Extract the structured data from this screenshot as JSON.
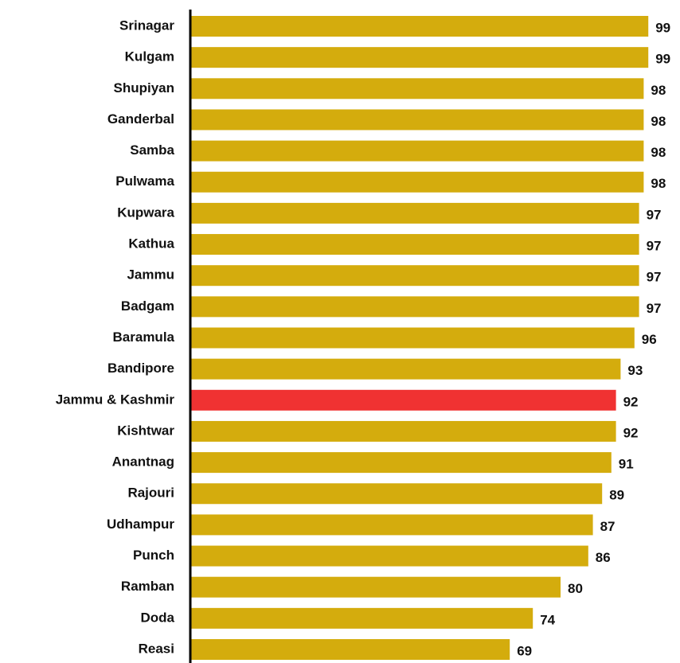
{
  "chart_data": {
    "type": "barh",
    "categories": [
      "Srinagar",
      "Kulgam",
      "Shupiyan",
      "Ganderbal",
      "Samba",
      "Pulwama",
      "Kupwara",
      "Kathua",
      "Jammu",
      "Badgam",
      "Baramula",
      "Bandipore",
      "Jammu & Kashmir",
      "Kishtwar",
      "Anantnag",
      "Rajouri",
      "Udhampur",
      "Punch",
      "Ramban",
      "Doda",
      "Reasi"
    ],
    "values": [
      99,
      99,
      98,
      98,
      98,
      98,
      97,
      97,
      97,
      97,
      96,
      93,
      92,
      92,
      91,
      89,
      87,
      86,
      80,
      74,
      69
    ],
    "colors": [
      "#d4ac0d",
      "#d4ac0d",
      "#d4ac0d",
      "#d4ac0d",
      "#d4ac0d",
      "#d4ac0d",
      "#d4ac0d",
      "#d4ac0d",
      "#d4ac0d",
      "#d4ac0d",
      "#d4ac0d",
      "#d4ac0d",
      "#f03232",
      "#d4ac0d",
      "#d4ac0d",
      "#d4ac0d",
      "#d4ac0d",
      "#d4ac0d",
      "#d4ac0d",
      "#d4ac0d",
      "#d4ac0d"
    ],
    "xlim": [
      0,
      100
    ]
  }
}
